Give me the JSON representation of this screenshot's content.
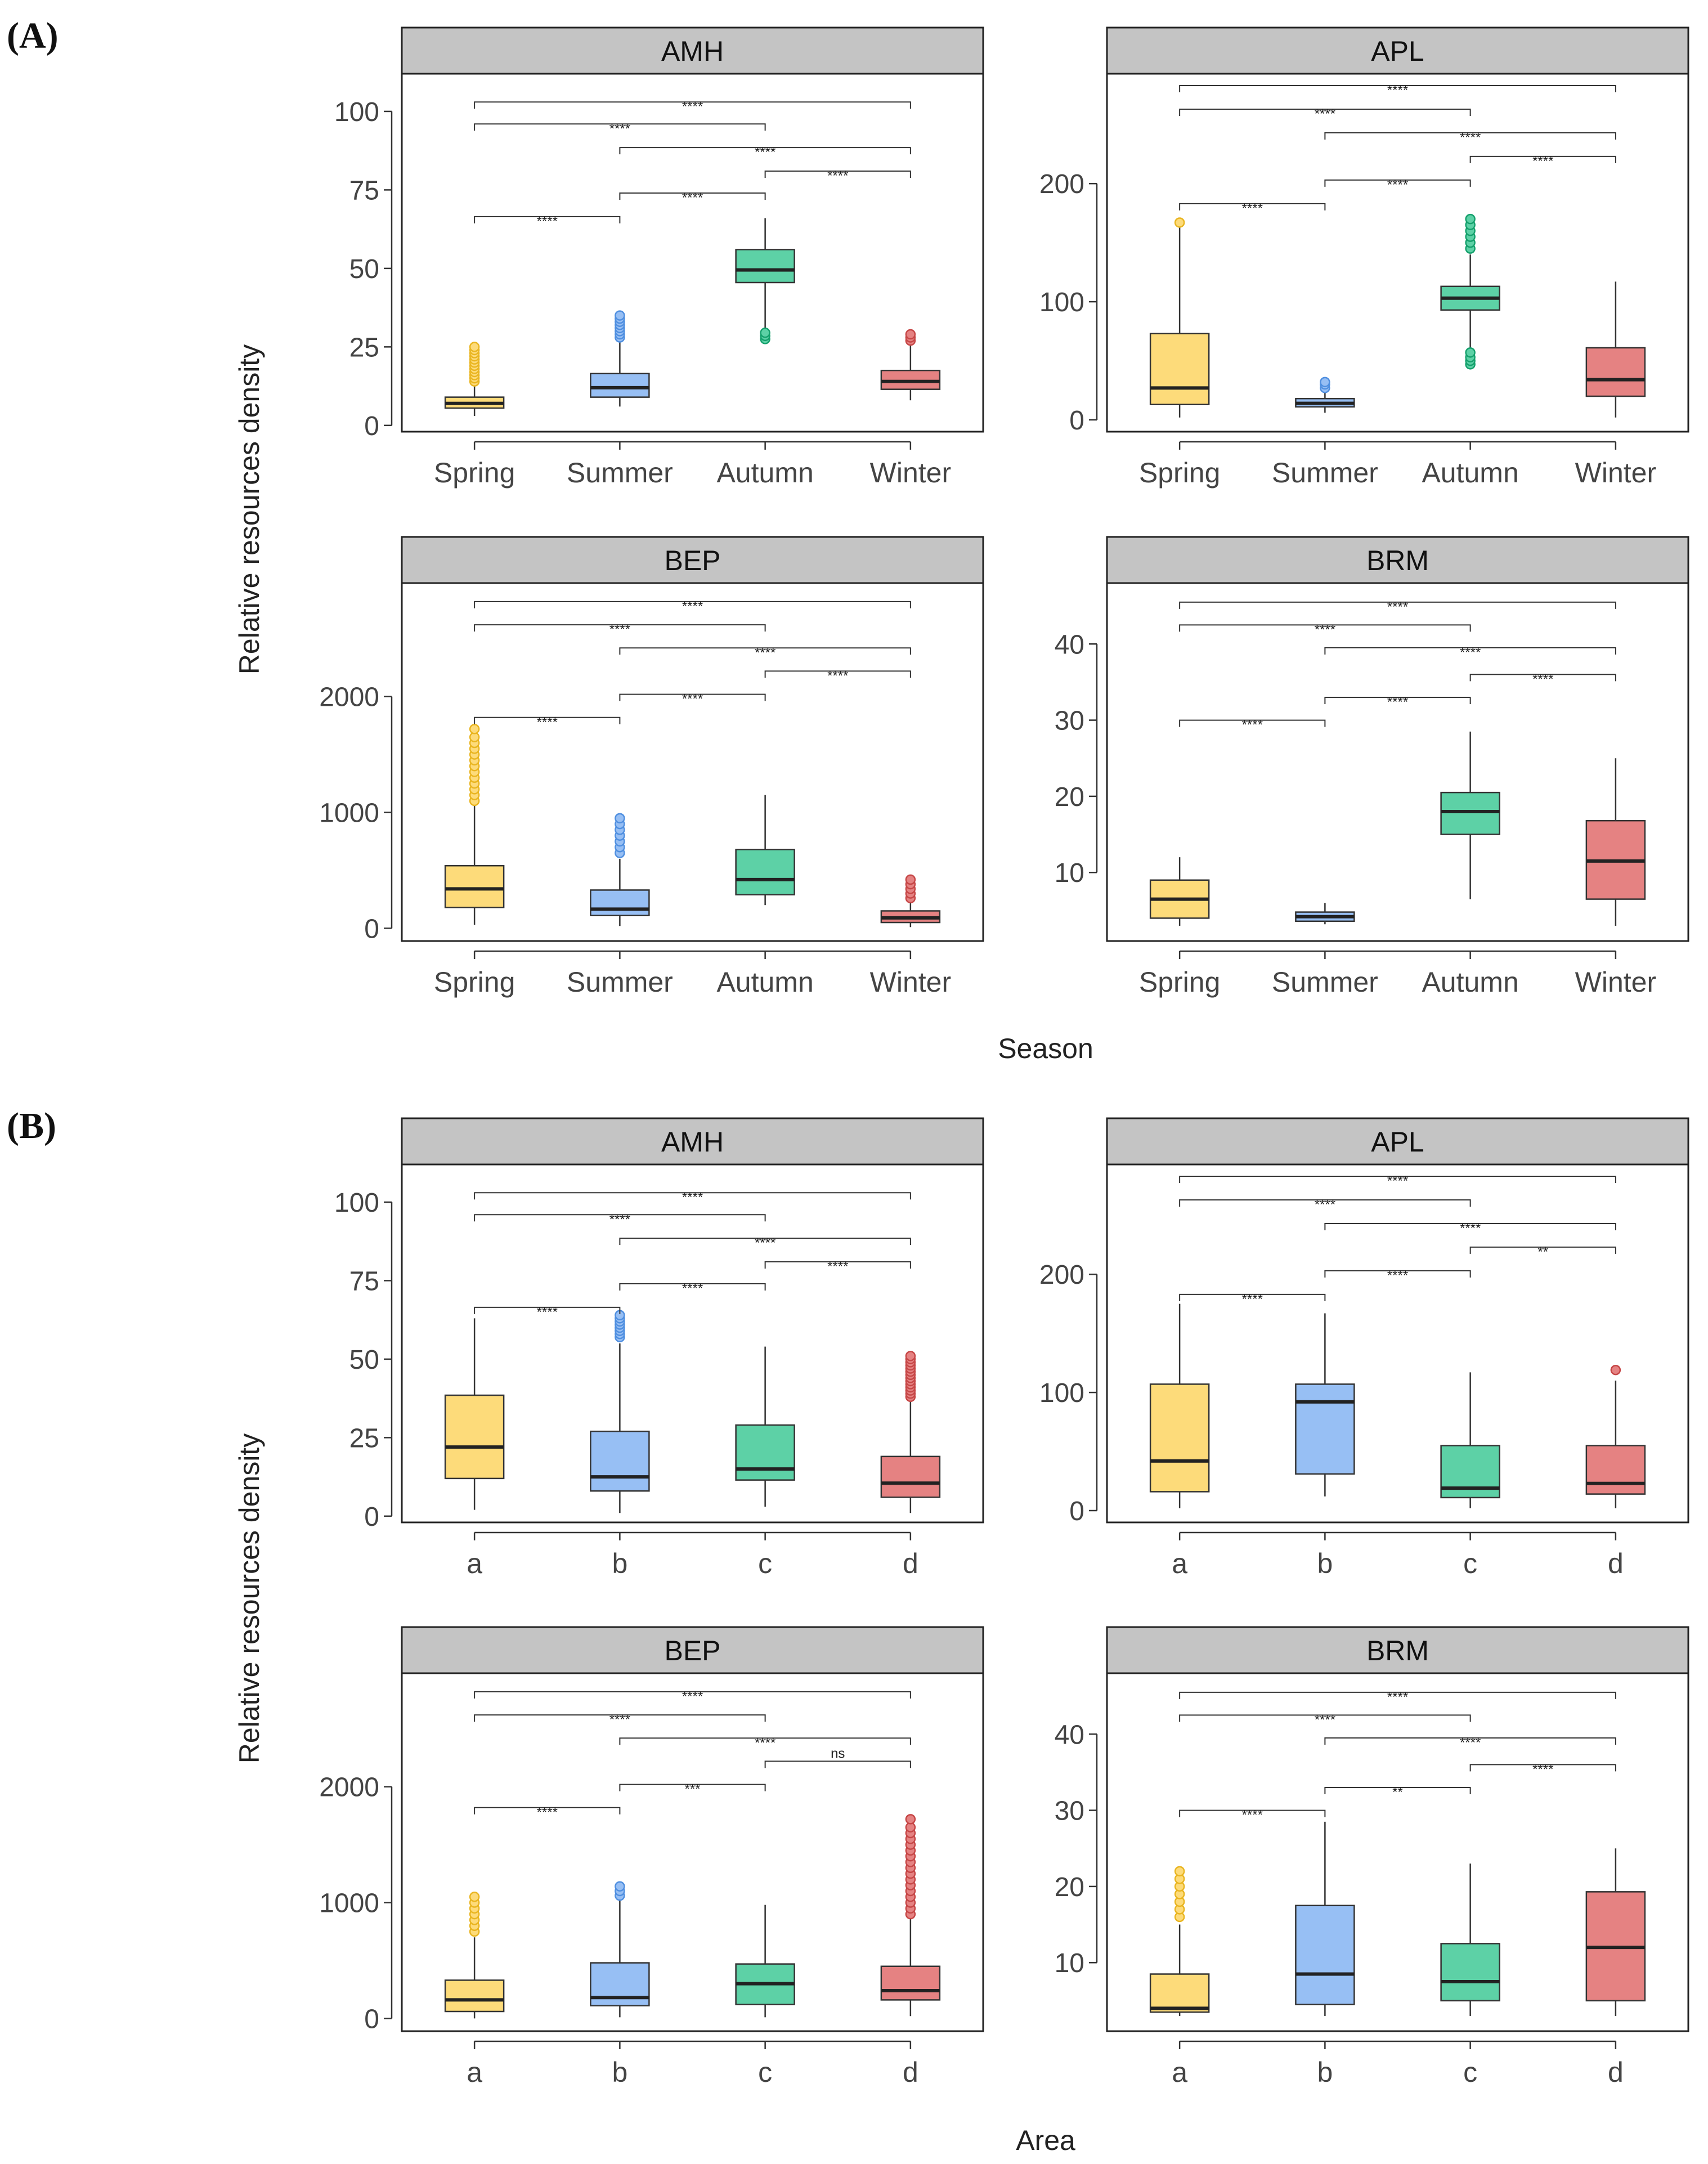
{
  "figure": {
    "panels": [
      {
        "id": "A",
        "letter": "(A)",
        "x_label": "Season",
        "y_label": "Relative resources density"
      },
      {
        "id": "B",
        "letter": "(B)",
        "x_label": "Area",
        "y_label": "Relative resources density"
      }
    ]
  },
  "colors": {
    "group": [
      "#fddb7a",
      "#97bff4",
      "#5dd1a6",
      "#e58282"
    ],
    "group_stroke": [
      "#e9b520",
      "#4f8fe0",
      "#14a06c",
      "#c64646"
    ],
    "strip": "#c4c4c4",
    "box_border": "#333333",
    "text": "#444444"
  },
  "chart_data": [
    {
      "type": "boxplot",
      "panel": "A",
      "title": "AMH",
      "categories": [
        "Spring",
        "Summer",
        "Autumn",
        "Winter"
      ],
      "ylim": [
        -2,
        112
      ],
      "yticks": [
        0,
        25,
        50,
        75,
        100
      ],
      "boxes": [
        {
          "whisker_low": 3,
          "q1": 5.5,
          "median": 7,
          "q3": 9,
          "whisker_high": 13,
          "outliers": [
            14,
            15,
            16,
            17,
            18,
            19,
            20,
            21,
            22,
            23,
            24,
            25
          ]
        },
        {
          "whisker_low": 6,
          "q1": 9,
          "median": 12,
          "q3": 16.5,
          "whisker_high": 27,
          "outliers": [
            28,
            29,
            30,
            31,
            32,
            33,
            34,
            35
          ]
        },
        {
          "whisker_low": 31,
          "q1": 45.5,
          "median": 49.5,
          "q3": 56,
          "whisker_high": 66,
          "outliers": [
            27.5,
            28.5,
            29.5
          ]
        },
        {
          "whisker_low": 8,
          "q1": 11.5,
          "median": 14,
          "q3": 17.5,
          "whisker_high": 26,
          "outliers": [
            27,
            28,
            29
          ]
        }
      ],
      "comparisons": [
        {
          "from": 0,
          "to": 3,
          "label": "****",
          "y": 103
        },
        {
          "from": 0,
          "to": 2,
          "label": "****",
          "y": 96
        },
        {
          "from": 1,
          "to": 3,
          "label": "****",
          "y": 88.5
        },
        {
          "from": 2,
          "to": 3,
          "label": "****",
          "y": 81
        },
        {
          "from": 1,
          "to": 2,
          "label": "****",
          "y": 74
        },
        {
          "from": 0,
          "to": 1,
          "label": "****",
          "y": 66.5
        }
      ]
    },
    {
      "type": "boxplot",
      "panel": "A",
      "title": "APL",
      "categories": [
        "Spring",
        "Summer",
        "Autumn",
        "Winter"
      ],
      "ylim": [
        -10,
        293
      ],
      "yticks": [
        0,
        100,
        200
      ],
      "boxes": [
        {
          "whisker_low": 2,
          "q1": 13,
          "median": 27,
          "q3": 73,
          "whisker_high": 163,
          "outliers": [
            167
          ]
        },
        {
          "whisker_low": 6,
          "q1": 11,
          "median": 14,
          "q3": 18,
          "whisker_high": 23,
          "outliers": [
            27,
            30,
            32
          ]
        },
        {
          "whisker_low": 60,
          "q1": 93,
          "median": 103,
          "q3": 113,
          "whisker_high": 140,
          "outliers": [
            47,
            50,
            53,
            57,
            145,
            150,
            155,
            160,
            165,
            170
          ]
        },
        {
          "whisker_low": 2,
          "q1": 20,
          "median": 34,
          "q3": 61,
          "whisker_high": 117,
          "outliers": []
        }
      ],
      "comparisons": [
        {
          "from": 0,
          "to": 3,
          "label": "****",
          "y": 283
        },
        {
          "from": 0,
          "to": 2,
          "label": "****",
          "y": 263
        },
        {
          "from": 1,
          "to": 3,
          "label": "****",
          "y": 243
        },
        {
          "from": 2,
          "to": 3,
          "label": "****",
          "y": 223
        },
        {
          "from": 1,
          "to": 2,
          "label": "****",
          "y": 203
        },
        {
          "from": 0,
          "to": 1,
          "label": "****",
          "y": 183
        }
      ]
    },
    {
      "type": "boxplot",
      "panel": "A",
      "title": "BEP",
      "categories": [
        "Spring",
        "Summer",
        "Autumn",
        "Winter"
      ],
      "ylim": [
        -110,
        2980
      ],
      "yticks": [
        0,
        1000,
        2000
      ],
      "boxes": [
        {
          "whisker_low": 30,
          "q1": 180,
          "median": 340,
          "q3": 540,
          "whisker_high": 1060,
          "outliers": [
            1100,
            1150,
            1200,
            1250,
            1300,
            1350,
            1400,
            1450,
            1500,
            1550,
            1600,
            1650,
            1720
          ]
        },
        {
          "whisker_low": 20,
          "q1": 110,
          "median": 165,
          "q3": 330,
          "whisker_high": 600,
          "outliers": [
            650,
            700,
            750,
            800,
            850,
            900,
            950
          ]
        },
        {
          "whisker_low": 200,
          "q1": 290,
          "median": 420,
          "q3": 680,
          "whisker_high": 1150,
          "outliers": []
        },
        {
          "whisker_low": 10,
          "q1": 50,
          "median": 90,
          "q3": 150,
          "whisker_high": 230,
          "outliers": [
            260,
            300,
            340,
            380,
            420
          ]
        }
      ],
      "comparisons": [
        {
          "from": 0,
          "to": 3,
          "label": "****",
          "y": 2820
        },
        {
          "from": 0,
          "to": 2,
          "label": "****",
          "y": 2620
        },
        {
          "from": 1,
          "to": 3,
          "label": "****",
          "y": 2420
        },
        {
          "from": 2,
          "to": 3,
          "label": "****",
          "y": 2220
        },
        {
          "from": 1,
          "to": 2,
          "label": "****",
          "y": 2020
        },
        {
          "from": 0,
          "to": 1,
          "label": "****",
          "y": 1820
        }
      ]
    },
    {
      "type": "boxplot",
      "panel": "A",
      "title": "BRM",
      "categories": [
        "Spring",
        "Summer",
        "Autumn",
        "Winter"
      ],
      "ylim": [
        1,
        48
      ],
      "yticks": [
        10,
        20,
        30,
        40
      ],
      "boxes": [
        {
          "whisker_low": 3,
          "q1": 4,
          "median": 6.5,
          "q3": 9,
          "whisker_high": 12,
          "outliers": []
        },
        {
          "whisker_low": 3.2,
          "q1": 3.6,
          "median": 4.2,
          "q3": 4.8,
          "whisker_high": 6,
          "outliers": []
        },
        {
          "whisker_low": 6.5,
          "q1": 15,
          "median": 18,
          "q3": 20.5,
          "whisker_high": 28.5,
          "outliers": []
        },
        {
          "whisker_low": 3,
          "q1": 6.5,
          "median": 11.5,
          "q3": 16.8,
          "whisker_high": 25,
          "outliers": []
        }
      ],
      "comparisons": [
        {
          "from": 0,
          "to": 3,
          "label": "****",
          "y": 45.5
        },
        {
          "from": 0,
          "to": 2,
          "label": "****",
          "y": 42.5
        },
        {
          "from": 1,
          "to": 3,
          "label": "****",
          "y": 39.5
        },
        {
          "from": 2,
          "to": 3,
          "label": "****",
          "y": 36
        },
        {
          "from": 1,
          "to": 2,
          "label": "****",
          "y": 33
        },
        {
          "from": 0,
          "to": 1,
          "label": "****",
          "y": 30
        }
      ]
    },
    {
      "type": "boxplot",
      "panel": "B",
      "title": "AMH",
      "categories": [
        "a",
        "b",
        "c",
        "d"
      ],
      "ylim": [
        -2,
        112
      ],
      "yticks": [
        0,
        25,
        50,
        75,
        100
      ],
      "boxes": [
        {
          "whisker_low": 2,
          "q1": 12,
          "median": 22,
          "q3": 38.5,
          "whisker_high": 63,
          "outliers": []
        },
        {
          "whisker_low": 1,
          "q1": 8,
          "median": 12.5,
          "q3": 27,
          "whisker_high": 55,
          "outliers": [
            57,
            58,
            59,
            60,
            61,
            62,
            63,
            64
          ]
        },
        {
          "whisker_low": 3,
          "q1": 11.5,
          "median": 15,
          "q3": 29,
          "whisker_high": 54,
          "outliers": []
        },
        {
          "whisker_low": 1,
          "q1": 6,
          "median": 10.5,
          "q3": 19,
          "whisker_high": 37,
          "outliers": [
            38,
            39,
            40,
            41,
            42,
            43,
            44,
            45,
            46,
            47,
            48,
            49,
            50,
            51
          ]
        }
      ],
      "comparisons": [
        {
          "from": 0,
          "to": 3,
          "label": "****",
          "y": 103
        },
        {
          "from": 0,
          "to": 2,
          "label": "****",
          "y": 96
        },
        {
          "from": 1,
          "to": 3,
          "label": "****",
          "y": 88.5
        },
        {
          "from": 2,
          "to": 3,
          "label": "****",
          "y": 81
        },
        {
          "from": 1,
          "to": 2,
          "label": "****",
          "y": 74
        },
        {
          "from": 0,
          "to": 1,
          "label": "****",
          "y": 66.5
        }
      ]
    },
    {
      "type": "boxplot",
      "panel": "B",
      "title": "APL",
      "categories": [
        "a",
        "b",
        "c",
        "d"
      ],
      "ylim": [
        -10,
        293
      ],
      "yticks": [
        0,
        100,
        200
      ],
      "boxes": [
        {
          "whisker_low": 2,
          "q1": 16,
          "median": 42,
          "q3": 107,
          "whisker_high": 175,
          "outliers": []
        },
        {
          "whisker_low": 12,
          "q1": 31,
          "median": 92,
          "q3": 107,
          "whisker_high": 167,
          "outliers": []
        },
        {
          "whisker_low": 2,
          "q1": 11,
          "median": 19,
          "q3": 55,
          "whisker_high": 117,
          "outliers": []
        },
        {
          "whisker_low": 2,
          "q1": 14,
          "median": 23,
          "q3": 55,
          "whisker_high": 110,
          "outliers": [
            119
          ]
        }
      ],
      "comparisons": [
        {
          "from": 0,
          "to": 3,
          "label": "****",
          "y": 283
        },
        {
          "from": 0,
          "to": 2,
          "label": "****",
          "y": 263
        },
        {
          "from": 1,
          "to": 3,
          "label": "****",
          "y": 243
        },
        {
          "from": 2,
          "to": 3,
          "label": "**",
          "y": 223
        },
        {
          "from": 1,
          "to": 2,
          "label": "****",
          "y": 203
        },
        {
          "from": 0,
          "to": 1,
          "label": "****",
          "y": 183
        }
      ]
    },
    {
      "type": "boxplot",
      "panel": "B",
      "title": "BEP",
      "categories": [
        "a",
        "b",
        "c",
        "d"
      ],
      "ylim": [
        -110,
        2980
      ],
      "yticks": [
        0,
        1000,
        2000
      ],
      "boxes": [
        {
          "whisker_low": 0,
          "q1": 60,
          "median": 160,
          "q3": 330,
          "whisker_high": 700,
          "outliers": [
            750,
            800,
            850,
            900,
            950,
            1000,
            1050
          ]
        },
        {
          "whisker_low": 10,
          "q1": 110,
          "median": 180,
          "q3": 480,
          "whisker_high": 1020,
          "outliers": [
            1060,
            1100,
            1140
          ]
        },
        {
          "whisker_low": 10,
          "q1": 120,
          "median": 300,
          "q3": 470,
          "whisker_high": 980,
          "outliers": []
        },
        {
          "whisker_low": 20,
          "q1": 160,
          "median": 240,
          "q3": 450,
          "whisker_high": 860,
          "outliers": [
            900,
            950,
            1000,
            1050,
            1100,
            1150,
            1200,
            1250,
            1300,
            1350,
            1400,
            1450,
            1500,
            1550,
            1600,
            1650,
            1720
          ]
        }
      ],
      "comparisons": [
        {
          "from": 0,
          "to": 3,
          "label": "****",
          "y": 2820
        },
        {
          "from": 0,
          "to": 2,
          "label": "****",
          "y": 2620
        },
        {
          "from": 1,
          "to": 3,
          "label": "****",
          "y": 2420
        },
        {
          "from": 2,
          "to": 3,
          "label": "ns",
          "y": 2220
        },
        {
          "from": 1,
          "to": 2,
          "label": "***",
          "y": 2020
        },
        {
          "from": 0,
          "to": 1,
          "label": "****",
          "y": 1820
        }
      ]
    },
    {
      "type": "boxplot",
      "panel": "B",
      "title": "BRM",
      "categories": [
        "a",
        "b",
        "c",
        "d"
      ],
      "ylim": [
        1,
        48
      ],
      "yticks": [
        10,
        20,
        30,
        40
      ],
      "boxes": [
        {
          "whisker_low": 3,
          "q1": 3.5,
          "median": 4,
          "q3": 8.5,
          "whisker_high": 15,
          "outliers": [
            16,
            17,
            18,
            19,
            20,
            21,
            22
          ]
        },
        {
          "whisker_low": 3,
          "q1": 4.5,
          "median": 8.5,
          "q3": 17.5,
          "whisker_high": 28.5,
          "outliers": []
        },
        {
          "whisker_low": 3,
          "q1": 5,
          "median": 7.5,
          "q3": 12.5,
          "whisker_high": 23,
          "outliers": []
        },
        {
          "whisker_low": 3,
          "q1": 5,
          "median": 12,
          "q3": 19.3,
          "whisker_high": 25,
          "outliers": []
        }
      ],
      "comparisons": [
        {
          "from": 0,
          "to": 3,
          "label": "****",
          "y": 45.5
        },
        {
          "from": 0,
          "to": 2,
          "label": "****",
          "y": 42.5
        },
        {
          "from": 1,
          "to": 3,
          "label": "****",
          "y": 39.5
        },
        {
          "from": 2,
          "to": 3,
          "label": "****",
          "y": 36
        },
        {
          "from": 1,
          "to": 2,
          "label": "**",
          "y": 33
        },
        {
          "from": 0,
          "to": 1,
          "label": "****",
          "y": 30
        }
      ]
    }
  ]
}
